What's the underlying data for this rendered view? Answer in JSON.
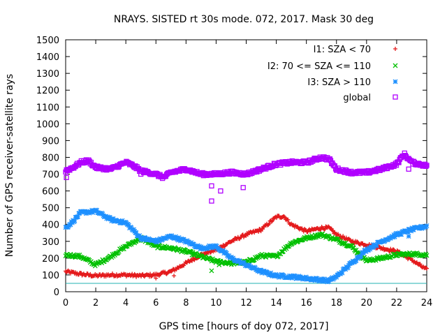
{
  "colors": {
    "I1": "#e41a1c",
    "I2": "#00c000",
    "I3": "#1e90ff",
    "global": "#b000ff",
    "threshold": "#20b0b0",
    "axis": "#000000"
  },
  "chart_data": {
    "type": "scatter",
    "title": "NRAYS. SISTED rt 30s mode. 072, 2017. Mask 30 deg",
    "xlabel": "GPS time [hours of doy 072, 2017]",
    "ylabel": "Number of GPS receiver-satellite rays",
    "xlim": [
      0,
      24
    ],
    "ylim": [
      0,
      1500
    ],
    "xticks": [
      0,
      2,
      4,
      6,
      8,
      10,
      12,
      14,
      16,
      18,
      20,
      22,
      24
    ],
    "yticks": [
      0,
      100,
      200,
      300,
      400,
      500,
      600,
      700,
      800,
      900,
      1000,
      1100,
      1200,
      1300,
      1400,
      1500
    ],
    "legend_position": "top-right",
    "threshold_line": 50,
    "series": [
      {
        "name": "I1: SZA < 70",
        "marker": "+",
        "color_key": "I1",
        "x": [
          0,
          1,
          2,
          3,
          4,
          5,
          6,
          7,
          8,
          9,
          10,
          11,
          12,
          13,
          14,
          14.5,
          15,
          16,
          17,
          17.5,
          18,
          19,
          20,
          21,
          22,
          23,
          24
        ],
        "y": [
          120,
          105,
          95,
          100,
          100,
          95,
          100,
          120,
          170,
          220,
          250,
          300,
          340,
          370,
          445,
          450,
          400,
          360,
          380,
          380,
          340,
          300,
          280,
          260,
          240,
          190,
          130
        ]
      },
      {
        "name": "I2: 70 <= SZA <= 110",
        "marker": "x",
        "color_key": "I2",
        "x": [
          0,
          1,
          2,
          3,
          4,
          5,
          6,
          7,
          8,
          9,
          10,
          11,
          12,
          13,
          14,
          15,
          16,
          17,
          18,
          19,
          20,
          21,
          22,
          23,
          24
        ],
        "y": [
          220,
          210,
          160,
          210,
          270,
          320,
          270,
          260,
          240,
          210,
          180,
          170,
          175,
          215,
          210,
          290,
          320,
          340,
          310,
          270,
          185,
          200,
          220,
          225,
          220
        ]
      },
      {
        "name": "I3: SZA > 110",
        "marker": "*",
        "color_key": "I3",
        "x": [
          0,
          0.5,
          1,
          2,
          3,
          4,
          5,
          6,
          7,
          8,
          9,
          10,
          11,
          12,
          13,
          14,
          15,
          16,
          17,
          17.5,
          18,
          19,
          20,
          21,
          22,
          23,
          24
        ],
        "y": [
          380,
          420,
          470,
          480,
          430,
          410,
          320,
          300,
          330,
          300,
          260,
          270,
          200,
          160,
          120,
          95,
          90,
          80,
          70,
          65,
          90,
          170,
          250,
          300,
          340,
          370,
          390
        ]
      },
      {
        "name": "global",
        "marker": "square",
        "color_key": "global",
        "x": [
          0,
          0.5,
          1,
          1.5,
          2,
          3,
          4,
          4.5,
          5,
          6,
          6.5,
          7,
          8,
          9,
          10,
          11,
          12,
          13,
          14,
          15,
          16,
          17,
          17.5,
          18,
          19,
          20,
          21,
          22,
          22.5,
          23,
          24
        ],
        "y": [
          720,
          740,
          770,
          780,
          740,
          730,
          770,
          750,
          720,
          700,
          680,
          710,
          730,
          700,
          700,
          710,
          700,
          730,
          760,
          770,
          770,
          800,
          790,
          730,
          710,
          710,
          730,
          760,
          820,
          770,
          750
        ]
      }
    ],
    "outliers": [
      {
        "series": "global",
        "x": 9.7,
        "y": 540
      },
      {
        "series": "global",
        "x": 9.7,
        "y": 630
      },
      {
        "series": "global",
        "x": 10.3,
        "y": 600
      },
      {
        "series": "global",
        "x": 11.8,
        "y": 620
      },
      {
        "series": "global",
        "x": 5.0,
        "y": 700
      },
      {
        "series": "global",
        "x": 0.05,
        "y": 680
      },
      {
        "series": "global",
        "x": 22.8,
        "y": 730
      },
      {
        "series": "I2",
        "x": 9.7,
        "y": 125
      },
      {
        "series": "I2",
        "x": 10.2,
        "y": 160
      },
      {
        "series": "I3",
        "x": 22.8,
        "y": 330
      },
      {
        "series": "I1",
        "x": 6.0,
        "y": 80
      },
      {
        "series": "I1",
        "x": 7.2,
        "y": 95
      }
    ]
  }
}
